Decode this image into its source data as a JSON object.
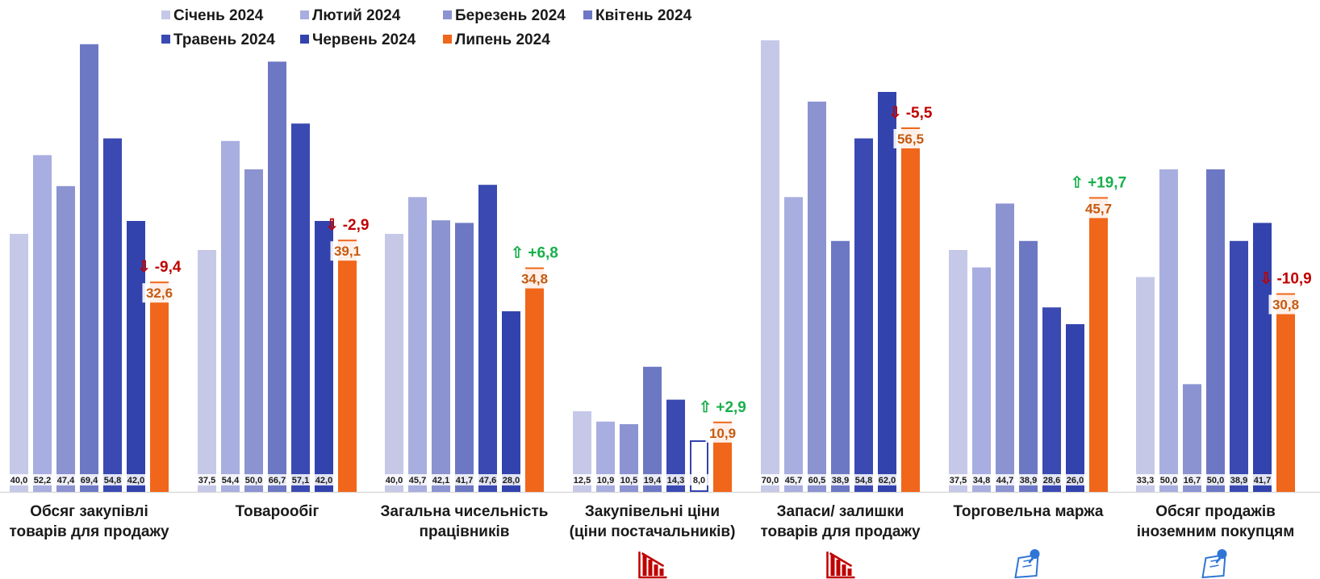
{
  "chart_data": {
    "type": "bar",
    "categories": [
      [
        "Обсяг закупівлі",
        "товарів для продажу"
      ],
      [
        "Товарообіг"
      ],
      [
        "Загальна чисельність",
        "працівників"
      ],
      [
        "Закупівельні ціни",
        "(ціни постачальників)"
      ],
      [
        "Запаси/ залишки",
        "товарів для продажу"
      ],
      [
        "Торговельна маржа"
      ],
      [
        "Обсяг продажів",
        "іноземним покупцям"
      ]
    ],
    "series": [
      {
        "name": "Січень 2024",
        "color": "#c5c8e6",
        "values": [
          40.0,
          37.5,
          40.0,
          12.5,
          70.0,
          37.5,
          33.3
        ]
      },
      {
        "name": "Лютий 2024",
        "color": "#a8aedf",
        "values": [
          52.2,
          54.4,
          45.7,
          10.9,
          45.7,
          34.8,
          50.0
        ]
      },
      {
        "name": "Березень 2024",
        "color": "#8b93d1",
        "values": [
          47.4,
          50.0,
          42.1,
          10.5,
          60.5,
          44.7,
          16.7
        ]
      },
      {
        "name": "Квітень 2024",
        "color": "#6d78c4",
        "values": [
          69.4,
          66.7,
          41.7,
          19.4,
          38.9,
          38.9,
          50.0
        ]
      },
      {
        "name": "Травень 2024",
        "color": "#3a4ab2",
        "values": [
          54.8,
          57.1,
          47.6,
          14.3,
          54.8,
          28.6,
          38.9
        ]
      },
      {
        "name": "Червень 2024",
        "color": "#3343ae",
        "values": [
          42.0,
          42.0,
          28.0,
          8.0,
          62.0,
          26.0,
          41.7
        ]
      },
      {
        "name": "Липень 2024",
        "color": "#f0661a",
        "values": [
          32.6,
          39.1,
          34.8,
          10.9,
          56.5,
          45.7,
          30.8
        ]
      }
    ],
    "value_labels": [
      [
        "40,0",
        "52,2",
        "47,4",
        "69,4",
        "54,8",
        "42,0",
        "32,6"
      ],
      [
        "37,5",
        "54,4",
        "50,0",
        "66,7",
        "57,1",
        "42,0",
        "39,1"
      ],
      [
        "40,0",
        "45,7",
        "42,1",
        "41,7",
        "47,6",
        "28,0",
        "34,8"
      ],
      [
        "12,5",
        "10,9",
        "10,5",
        "19,4",
        "14,3",
        "8,0",
        "10,9"
      ],
      [
        "70,0",
        "45,7",
        "60,5",
        "38,9",
        "54,8",
        "62,0",
        "56,5"
      ],
      [
        "37,5",
        "34,8",
        "44,7",
        "38,9",
        "28,6",
        "26,0",
        "45,7"
      ],
      [
        "33,3",
        "50,0",
        "16,7",
        "50,0",
        "38,9",
        "41,7",
        "30,8"
      ]
    ],
    "changes": [
      {
        "text": "-9,4",
        "direction": "down"
      },
      {
        "text": "-2,9",
        "direction": "down"
      },
      {
        "text": "+6,8",
        "direction": "up"
      },
      {
        "text": "+2,9",
        "direction": "up"
      },
      {
        "text": "-5,5",
        "direction": "down"
      },
      {
        "text": "+19,7",
        "direction": "up"
      },
      {
        "text": "-10,9",
        "direction": "down"
      }
    ],
    "change_colors": {
      "up": "#18b04c",
      "down": "#c00000"
    },
    "arrow_glyphs": {
      "up": "⇧",
      "down": "⇩"
    },
    "category_icons": [
      "",
      "",
      "",
      "declining-bar-chart-icon",
      "declining-bar-chart-icon",
      "pinned-note-icon",
      "pinned-note-icon"
    ],
    "ylim": [
      0,
      72
    ],
    "grid": false,
    "legend_position": "top-left"
  }
}
